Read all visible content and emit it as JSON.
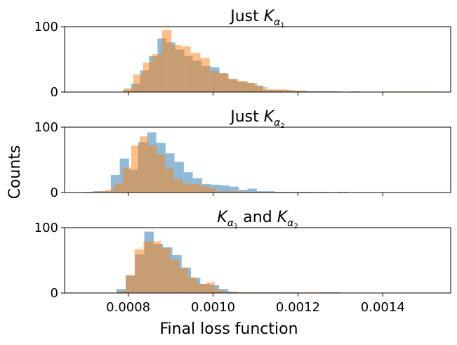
{
  "figure": {
    "xlabel": "Final loss function",
    "ylabel": "Counts"
  },
  "colors": {
    "series_a": "#1f77b4",
    "series_b": "#ff7f0e",
    "overlap_alpha": 0.5
  },
  "chart_data": [
    {
      "type": "bar",
      "subtype": "overlapping-histogram",
      "title": "Just K_{α1}",
      "title_parts": {
        "prefix": "Just ",
        "main": "K",
        "sub": "α",
        "subsub": "1",
        "suffix": ""
      },
      "xlim": [
        0.00065,
        0.00156
      ],
      "ylim": [
        0,
        100
      ],
      "yticks": [
        0,
        100
      ],
      "xticks": [
        0.0008,
        0.001,
        0.0012,
        0.0014
      ],
      "show_xtick_labels": false,
      "series": [
        {
          "color": "#1f77b4",
          "bins": [
            [
              0.000787,
              0.000807,
              3
            ],
            [
              0.000807,
              0.000828,
              13
            ],
            [
              0.000828,
              0.000849,
              33
            ],
            [
              0.000849,
              0.000869,
              55
            ],
            [
              0.000869,
              0.00089,
              82
            ],
            [
              0.00089,
              0.000911,
              76
            ],
            [
              0.000911,
              0.000932,
              65
            ],
            [
              0.000932,
              0.000952,
              55
            ],
            [
              0.000952,
              0.000973,
              48
            ],
            [
              0.000973,
              0.000994,
              40
            ],
            [
              0.000994,
              0.001015,
              38
            ],
            [
              0.001015,
              0.001035,
              29
            ],
            [
              0.001035,
              0.001056,
              20
            ],
            [
              0.001056,
              0.001077,
              16
            ],
            [
              0.001077,
              0.001098,
              14
            ],
            [
              0.001098,
              0.001118,
              10
            ],
            [
              0.001118,
              0.001139,
              3
            ],
            [
              0.001139,
              0.00116,
              3
            ],
            [
              0.00116,
              0.00118,
              3
            ],
            [
              0.00118,
              0.001201,
              2
            ],
            [
              0.001201,
              0.001222,
              2
            ],
            [
              0.001222,
              0.001243,
              1
            ],
            [
              0.001243,
              0.001263,
              1
            ],
            [
              0.001263,
              0.001284,
              1
            ],
            [
              0.001284,
              0.001305,
              1
            ],
            [
              0.001305,
              0.001326,
              0
            ],
            [
              0.001326,
              0.001346,
              1
            ]
          ]
        },
        {
          "color": "#ff7f0e",
          "bins": [
            [
              0.00079,
              0.000812,
              6
            ],
            [
              0.000812,
              0.000835,
              27
            ],
            [
              0.000835,
              0.000857,
              45
            ],
            [
              0.000857,
              0.00088,
              58
            ],
            [
              0.00088,
              0.000902,
              95
            ],
            [
              0.000902,
              0.000925,
              72
            ],
            [
              0.000925,
              0.000947,
              70
            ],
            [
              0.000947,
              0.00097,
              60
            ],
            [
              0.00097,
              0.000992,
              52
            ],
            [
              0.000992,
              0.001015,
              32
            ],
            [
              0.001015,
              0.001037,
              28
            ],
            [
              0.001037,
              0.001059,
              20
            ],
            [
              0.001059,
              0.001082,
              17
            ],
            [
              0.001082,
              0.001104,
              14
            ],
            [
              0.001104,
              0.001127,
              8
            ],
            [
              0.001127,
              0.001149,
              4
            ],
            [
              0.001149,
              0.001172,
              4
            ],
            [
              0.001172,
              0.001194,
              3
            ],
            [
              0.001194,
              0.001217,
              2
            ],
            [
              0.001217,
              0.001239,
              1
            ],
            [
              0.001239,
              0.001262,
              1
            ],
            [
              0.001262,
              0.001284,
              1
            ],
            [
              0.001284,
              0.001307,
              0
            ],
            [
              0.001307,
              0.001329,
              0
            ],
            [
              0.001329,
              0.001352,
              0
            ],
            [
              0.001352,
              0.001374,
              0
            ],
            [
              0.001374,
              0.001397,
              0
            ],
            [
              0.001397,
              0.001419,
              1
            ],
            [
              0.001419,
              0.001442,
              1
            ],
            [
              0.001442,
              0.001464,
              1
            ],
            [
              0.001464,
              0.001487,
              1
            ],
            [
              0.001487,
              0.001509,
              1
            ],
            [
              0.001509,
              0.001532,
              1
            ]
          ]
        }
      ]
    },
    {
      "type": "bar",
      "subtype": "overlapping-histogram",
      "title": "Just K_{α2}",
      "title_parts": {
        "prefix": "Just ",
        "main": "K",
        "sub": "α",
        "subsub": "2",
        "suffix": ""
      },
      "xlim": [
        0.00065,
        0.00156
      ],
      "ylim": [
        0,
        100
      ],
      "yticks": [
        0,
        100
      ],
      "xticks": [
        0.0008,
        0.001,
        0.0012,
        0.0014
      ],
      "show_xtick_labels": false,
      "series": [
        {
          "color": "#1f77b4",
          "bins": [
            [
              0.000694,
              0.000716,
              1
            ],
            [
              0.000716,
              0.000737,
              2
            ],
            [
              0.000737,
              0.000759,
              2
            ],
            [
              0.000759,
              0.00078,
              27
            ],
            [
              0.00078,
              0.000802,
              52
            ],
            [
              0.000802,
              0.000823,
              35
            ],
            [
              0.000823,
              0.000845,
              77
            ],
            [
              0.000845,
              0.000866,
              92
            ],
            [
              0.000866,
              0.000888,
              76
            ],
            [
              0.000888,
              0.000909,
              60
            ],
            [
              0.000909,
              0.000931,
              47
            ],
            [
              0.000931,
              0.000952,
              31
            ],
            [
              0.000952,
              0.000974,
              22
            ],
            [
              0.000974,
              0.000995,
              13
            ],
            [
              0.000995,
              0.001017,
              12
            ],
            [
              0.001017,
              0.001038,
              11
            ],
            [
              0.001038,
              0.00106,
              9
            ],
            [
              0.00106,
              0.001081,
              4
            ],
            [
              0.001081,
              0.001103,
              6
            ],
            [
              0.001103,
              0.001124,
              2
            ],
            [
              0.001124,
              0.001146,
              2
            ],
            [
              0.001146,
              0.001167,
              1
            ],
            [
              0.001167,
              0.001189,
              1
            ],
            [
              0.001189,
              0.00121,
              1
            ],
            [
              0.00121,
              0.001232,
              1
            ],
            [
              0.001232,
              0.001253,
              1
            ],
            [
              0.001253,
              0.001275,
              1
            ],
            [
              0.001275,
              0.001296,
              0
            ],
            [
              0.001296,
              0.001318,
              1
            ]
          ]
        },
        {
          "color": "#ff7f0e",
          "bins": [
            [
              0.000727,
              0.000747,
              2
            ],
            [
              0.000747,
              0.000767,
              4
            ],
            [
              0.000767,
              0.000787,
              14
            ],
            [
              0.000787,
              0.000807,
              38
            ],
            [
              0.000807,
              0.000827,
              72
            ],
            [
              0.000827,
              0.000847,
              86
            ],
            [
              0.000847,
              0.000867,
              72
            ],
            [
              0.000867,
              0.000887,
              58
            ],
            [
              0.000887,
              0.000907,
              37
            ],
            [
              0.000907,
              0.000927,
              21
            ],
            [
              0.000927,
              0.000947,
              14
            ],
            [
              0.000947,
              0.000967,
              13
            ],
            [
              0.000967,
              0.000987,
              10
            ],
            [
              0.000987,
              0.001007,
              7
            ],
            [
              0.001007,
              0.001027,
              2
            ],
            [
              0.001027,
              0.001047,
              2
            ],
            [
              0.001047,
              0.001067,
              2
            ],
            [
              0.001067,
              0.001087,
              1
            ],
            [
              0.001087,
              0.001107,
              1
            ],
            [
              0.001107,
              0.001127,
              1
            ],
            [
              0.001127,
              0.001147,
              1
            ],
            [
              0.001147,
              0.001167,
              1
            ],
            [
              0.001167,
              0.001187,
              1
            ],
            [
              0.001187,
              0.001207,
              0
            ],
            [
              0.001207,
              0.001227,
              1
            ]
          ]
        }
      ]
    },
    {
      "type": "bar",
      "subtype": "overlapping-histogram",
      "title": "K_{α1} and K_{α2}",
      "title_parts": {
        "prefix": "",
        "main": "K",
        "sub": "α",
        "subsub": "1",
        "mid": " and ",
        "main2": "K",
        "sub2": "α",
        "subsub2": "2"
      },
      "xlim": [
        0.00065,
        0.00156
      ],
      "ylim": [
        0,
        100
      ],
      "yticks": [
        0,
        100
      ],
      "xticks": [
        0.0008,
        0.001,
        0.0012,
        0.0014
      ],
      "xtick_labels": [
        "0.0008",
        "0.0010",
        "0.0012",
        "0.0014"
      ],
      "show_xtick_labels": true,
      "series": [
        {
          "color": "#1f77b4",
          "bins": [
            [
              0.000772,
              0.000794,
              6
            ],
            [
              0.000794,
              0.000816,
              27
            ],
            [
              0.000816,
              0.000838,
              59
            ],
            [
              0.000838,
              0.00086,
              94
            ],
            [
              0.00086,
              0.000882,
              75
            ],
            [
              0.000882,
              0.000904,
              70
            ],
            [
              0.000904,
              0.000926,
              58
            ],
            [
              0.000926,
              0.000948,
              39
            ],
            [
              0.000948,
              0.00097,
              23
            ],
            [
              0.00097,
              0.000992,
              14
            ],
            [
              0.000992,
              0.001014,
              12
            ],
            [
              0.001014,
              0.001036,
              6
            ],
            [
              0.001036,
              0.001058,
              2
            ],
            [
              0.001058,
              0.00108,
              1
            ],
            [
              0.00108,
              0.001102,
              1
            ],
            [
              0.001102,
              0.001124,
              1
            ],
            [
              0.001124,
              0.001146,
              1
            ],
            [
              0.001146,
              0.001168,
              1
            ],
            [
              0.001168,
              0.00119,
              1
            ],
            [
              0.00119,
              0.001212,
              1
            ],
            [
              0.001212,
              0.001234,
              0
            ],
            [
              0.001234,
              0.001256,
              0
            ],
            [
              0.001256,
              0.001278,
              1
            ],
            [
              0.001278,
              0.0013,
              1
            ]
          ]
        },
        {
          "color": "#ff7f0e",
          "bins": [
            [
              0.000773,
              0.000794,
              3
            ],
            [
              0.000794,
              0.000815,
              27
            ],
            [
              0.000815,
              0.000836,
              67
            ],
            [
              0.000836,
              0.000857,
              79
            ],
            [
              0.000857,
              0.000878,
              79
            ],
            [
              0.000878,
              0.000899,
              69
            ],
            [
              0.000899,
              0.00092,
              51
            ],
            [
              0.00092,
              0.000941,
              38
            ],
            [
              0.000941,
              0.000962,
              24
            ],
            [
              0.000962,
              0.000983,
              14
            ],
            [
              0.000983,
              0.001004,
              16
            ],
            [
              0.001004,
              0.001025,
              5
            ],
            [
              0.001025,
              0.001046,
              2
            ],
            [
              0.001046,
              0.001067,
              1
            ],
            [
              0.001067,
              0.001088,
              1
            ],
            [
              0.001088,
              0.001109,
              1
            ],
            [
              0.001109,
              0.00113,
              1
            ],
            [
              0.00113,
              0.001151,
              1
            ],
            [
              0.001151,
              0.001172,
              0
            ],
            [
              0.001172,
              0.001193,
              0
            ],
            [
              0.001193,
              0.001214,
              0
            ],
            [
              0.001214,
              0.001235,
              1
            ],
            [
              0.001235,
              0.001256,
              1
            ],
            [
              0.001256,
              0.001277,
              1
            ]
          ]
        }
      ]
    }
  ]
}
